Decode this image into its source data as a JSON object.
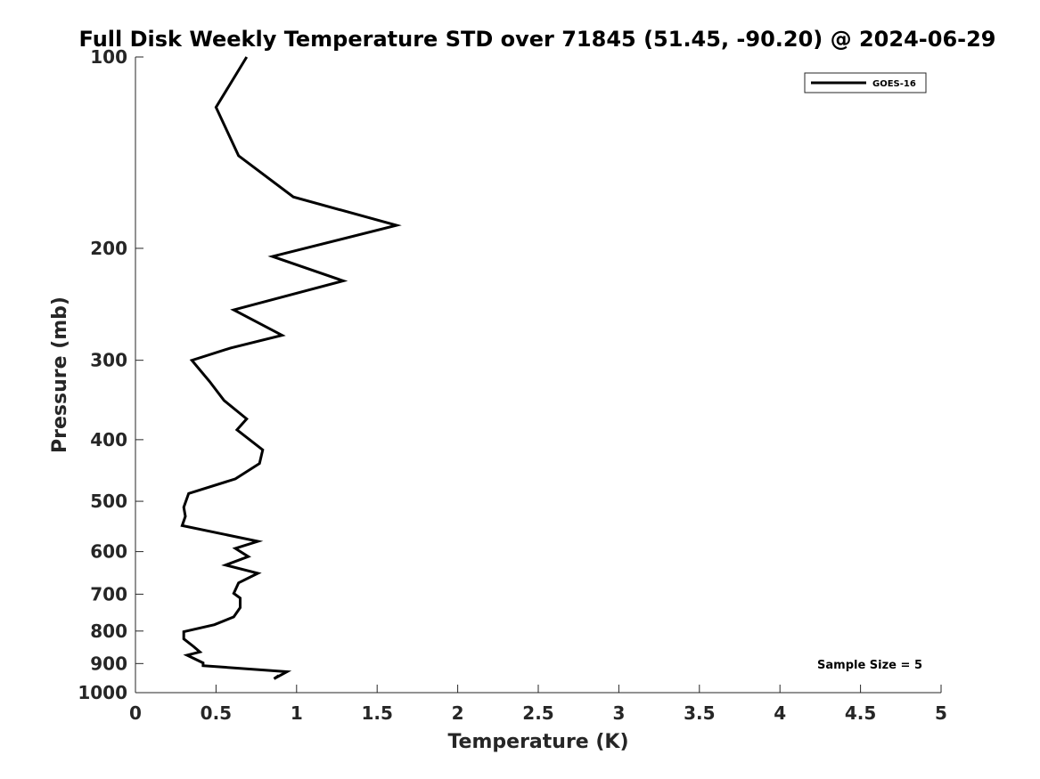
{
  "chart_data": {
    "type": "line",
    "title": "Full Disk Weekly Temperature STD over 71845 (51.45, -90.20) @ 2024-06-29",
    "xlabel": "Temperature (K)",
    "ylabel": "Pressure (mb)",
    "xlim": [
      0,
      5
    ],
    "ylim": [
      100,
      1000
    ],
    "y_scale": "log",
    "y_reversed": true,
    "x_ticks": [
      "0",
      "0.5",
      "1",
      "1.5",
      "2",
      "2.5",
      "3",
      "3.5",
      "4",
      "4.5",
      "5"
    ],
    "x_tick_values": [
      0,
      0.5,
      1,
      1.5,
      2,
      2.5,
      3,
      3.5,
      4,
      4.5,
      5
    ],
    "y_ticks": [
      "100",
      "200",
      "300",
      "400",
      "500",
      "600",
      "700",
      "800",
      "900",
      "1000"
    ],
    "y_tick_values": [
      100,
      200,
      300,
      400,
      500,
      600,
      700,
      800,
      900,
      1000
    ],
    "grid": false,
    "legend_position": "top-right",
    "annotation": "Sample Size = 5",
    "series": [
      {
        "name": "GOES-16",
        "color": "#000000",
        "x": [
          0.69,
          0.5,
          0.64,
          0.98,
          1.62,
          0.85,
          1.29,
          0.61,
          0.91,
          0.59,
          0.35,
          0.46,
          0.55,
          0.69,
          0.63,
          0.79,
          0.77,
          0.62,
          0.33,
          0.3,
          0.31,
          0.29,
          0.76,
          0.62,
          0.7,
          0.56,
          0.76,
          0.64,
          0.61,
          0.65,
          0.65,
          0.61,
          0.49,
          0.3,
          0.3,
          0.36,
          0.4,
          0.32,
          0.42,
          0.42,
          0.94,
          0.86,
          0.89
        ],
        "y": [
          100,
          120,
          143,
          166,
          184,
          206,
          225,
          250,
          274,
          287,
          300,
          324,
          347,
          371,
          386,
          415,
          436,
          461,
          486,
          511,
          528,
          546,
          578,
          593,
          611,
          630,
          649,
          672,
          698,
          710,
          735,
          760,
          782,
          802,
          823,
          846,
          863,
          873,
          898,
          907,
          927,
          951,
          940
        ]
      }
    ]
  }
}
